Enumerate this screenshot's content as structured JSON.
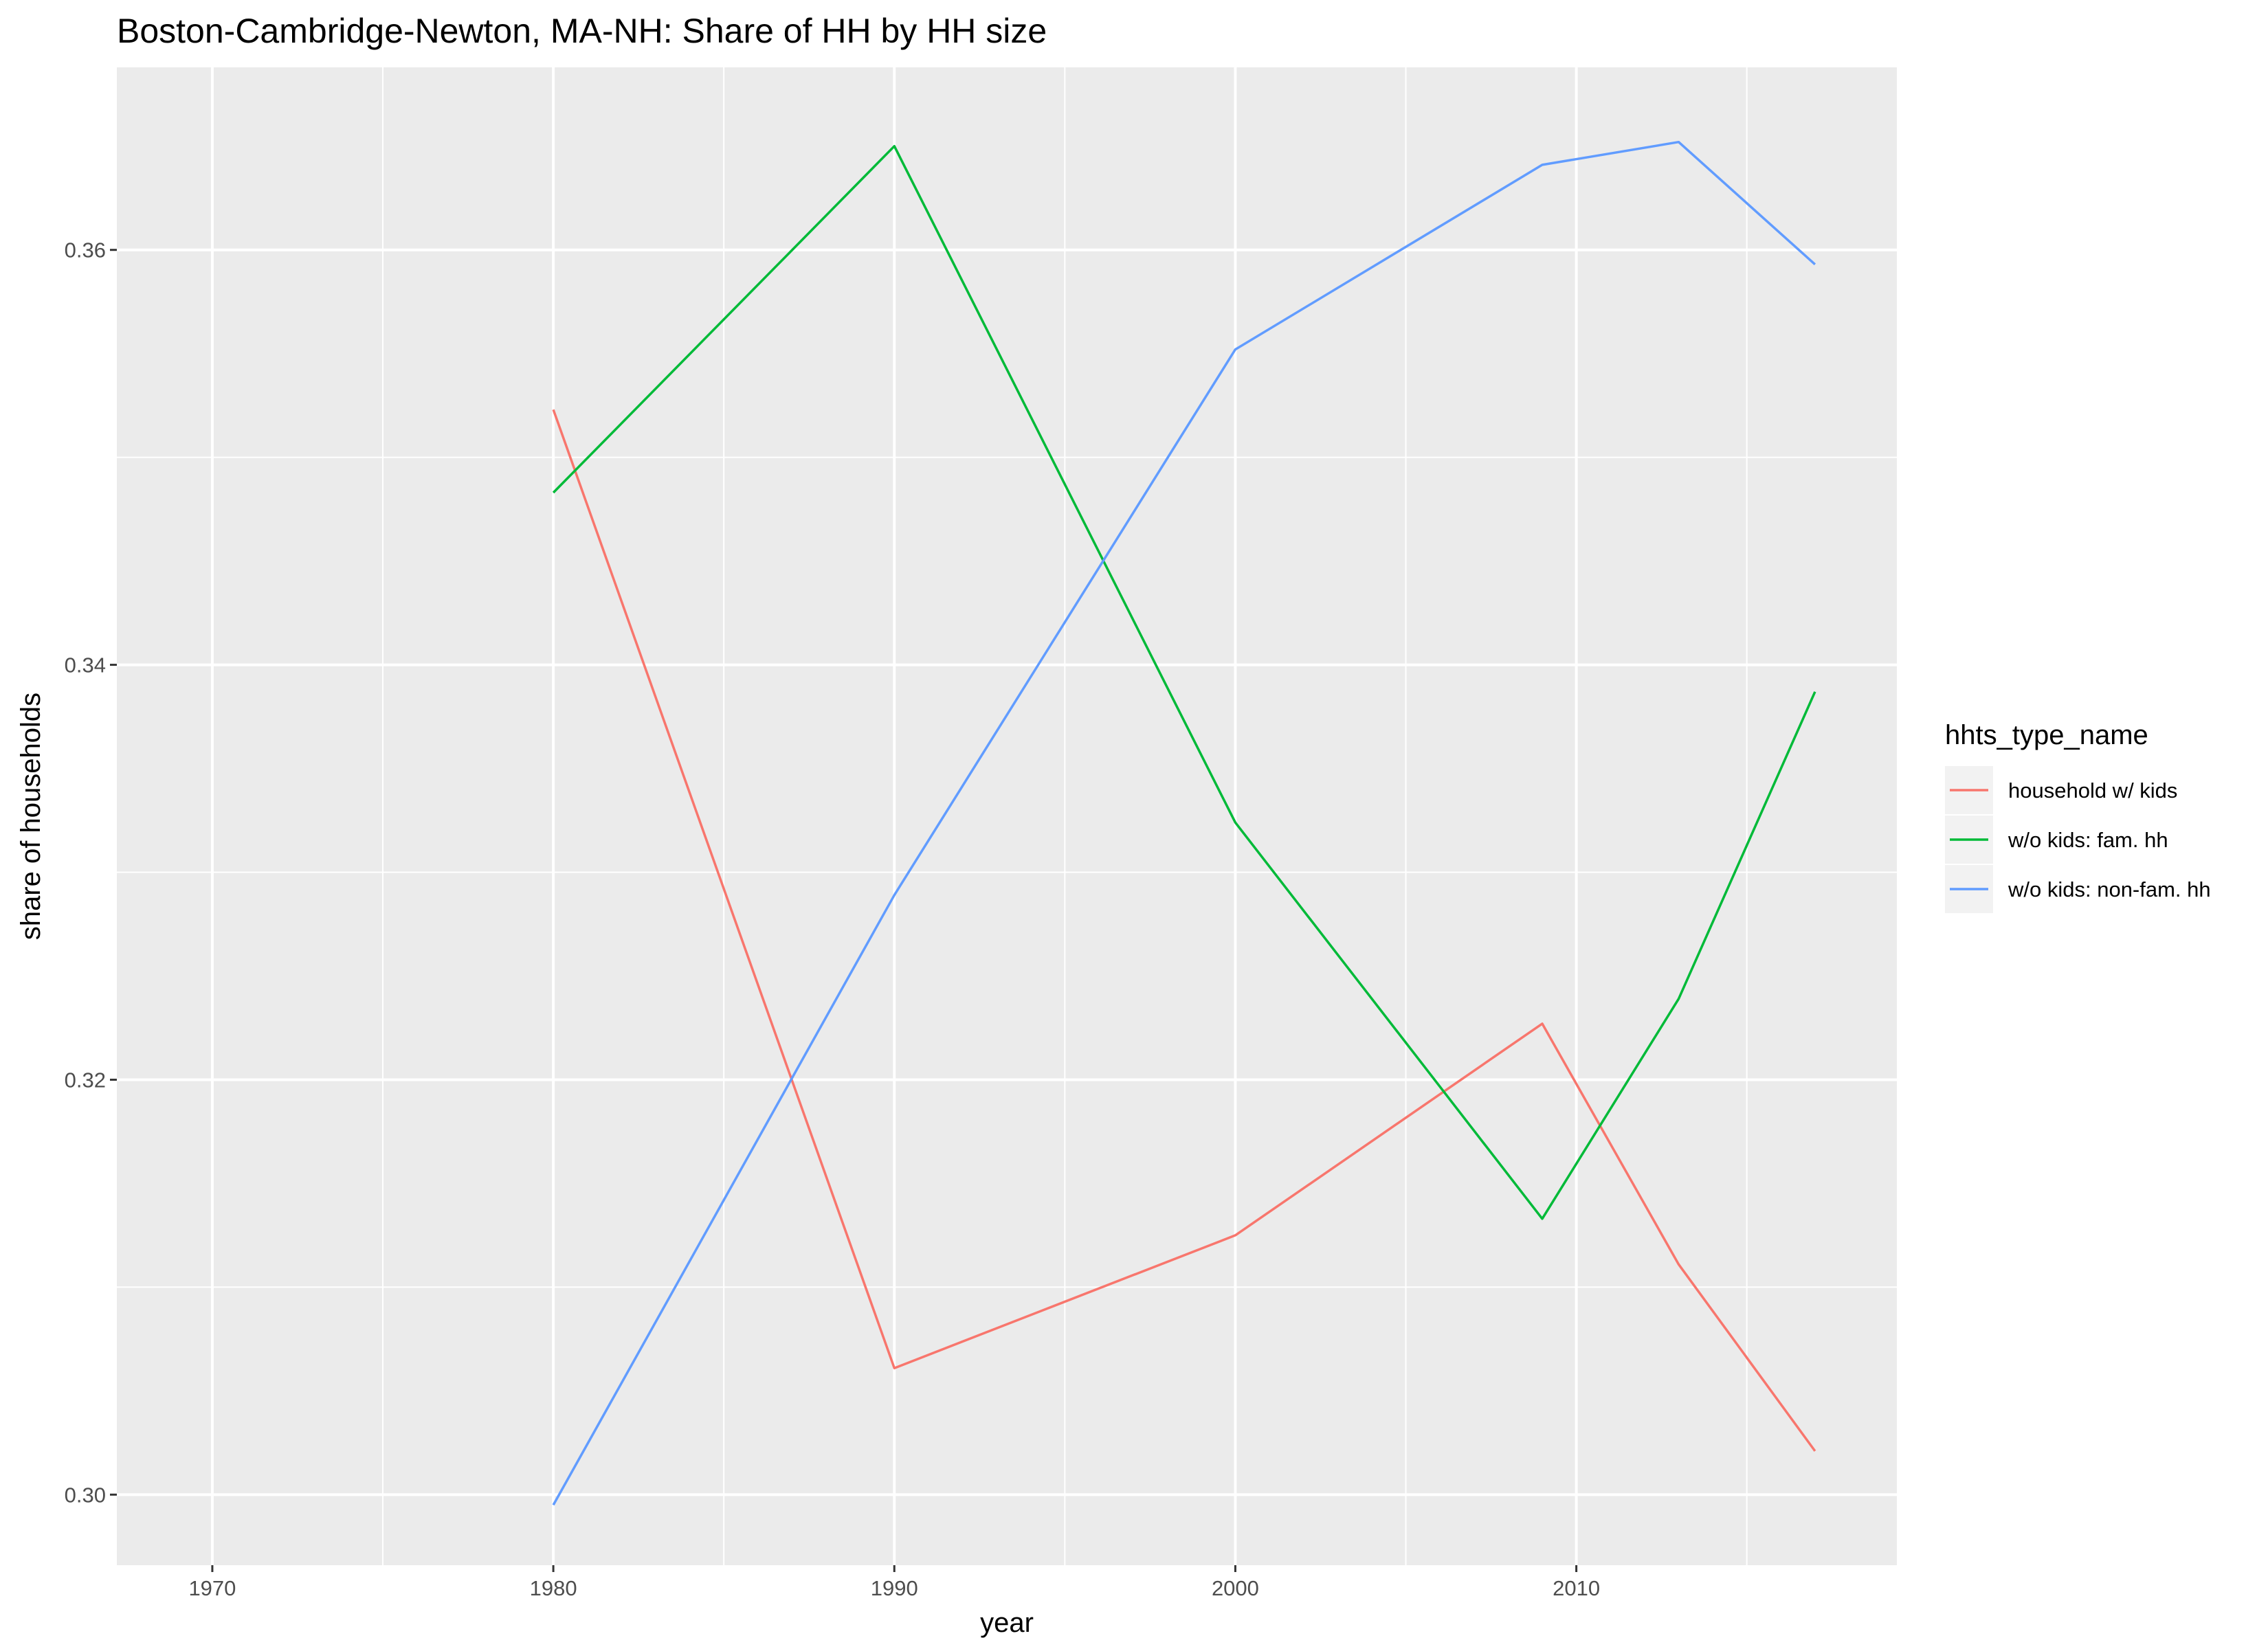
{
  "chart_data": {
    "type": "line",
    "title": "Boston-Cambridge-Newton, MA-NH: Share of HH by HH size",
    "xlabel": "year",
    "ylabel": "share of households",
    "xlim": [
      1967.2,
      2019.4
    ],
    "ylim": [
      0.2966,
      0.3688
    ],
    "x_ticks": [
      1970,
      1980,
      1990,
      2000,
      2010
    ],
    "x_tick_labels": [
      "1970",
      "1980",
      "1990",
      "2000",
      "2010"
    ],
    "x_minor_ticks": [
      1975,
      1985,
      1995,
      2005,
      2015
    ],
    "y_ticks": [
      0.3,
      0.32,
      0.34,
      0.36
    ],
    "y_tick_labels": [
      "0.30",
      "0.32",
      "0.34",
      "0.36"
    ],
    "y_minor_ticks": [
      0.31,
      0.33,
      0.35
    ],
    "grid": true,
    "legend_position": "right",
    "legend_title": "hhts_type_name",
    "series": [
      {
        "name": "household w/ kids",
        "color": "#F8766D",
        "x": [
          1980,
          1990,
          2000,
          2009,
          2013,
          2017
        ],
        "y": [
          0.3523,
          0.3061,
          0.3125,
          0.3227,
          0.3111,
          0.3021
        ]
      },
      {
        "name": "w/o kids: fam. hh",
        "color": "#00BA38",
        "x": [
          1980,
          1990,
          2000,
          2009,
          2013,
          2017
        ],
        "y": [
          0.3483,
          0.365,
          0.3324,
          0.3133,
          0.3239,
          0.3387
        ]
      },
      {
        "name": "w/o kids: non-fam. hh",
        "color": "#619CFF",
        "x": [
          1980,
          1990,
          2000,
          2009,
          2013,
          2017
        ],
        "y": [
          0.2995,
          0.3289,
          0.3552,
          0.3641,
          0.3652,
          0.3593
        ]
      }
    ]
  }
}
